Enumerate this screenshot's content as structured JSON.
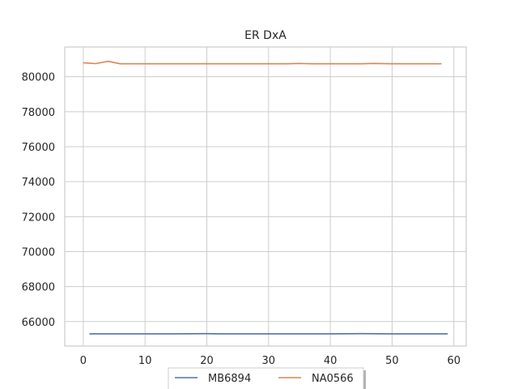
{
  "chart_data": {
    "type": "line",
    "title": "ER DxA",
    "xlabel": "",
    "ylabel": "",
    "xlim": [
      -3,
      62
    ],
    "ylim": [
      64600,
      81700
    ],
    "x_ticks": [
      0,
      10,
      20,
      30,
      40,
      50,
      60
    ],
    "y_ticks": [
      66000,
      68000,
      70000,
      72000,
      74000,
      76000,
      78000,
      80000
    ],
    "grid": true,
    "legend_position": "bottom-center",
    "series": [
      {
        "name": "MB6894",
        "color": "#4c72b0",
        "x": [
          1,
          5,
          10,
          15,
          20,
          22,
          25,
          30,
          35,
          40,
          45,
          50,
          55,
          59
        ],
        "y": [
          65300,
          65300,
          65300,
          65300,
          65310,
          65300,
          65300,
          65300,
          65300,
          65300,
          65310,
          65300,
          65300,
          65300
        ]
      },
      {
        "name": "NA0566",
        "color": "#dd8452",
        "x": [
          0,
          2,
          4,
          6,
          10,
          15,
          20,
          25,
          30,
          33,
          35,
          37,
          40,
          45,
          47,
          50,
          55,
          58
        ],
        "y": [
          80800,
          80750,
          80880,
          80740,
          80740,
          80740,
          80740,
          80740,
          80740,
          80740,
          80760,
          80740,
          80740,
          80740,
          80760,
          80740,
          80740,
          80740
        ]
      }
    ]
  }
}
